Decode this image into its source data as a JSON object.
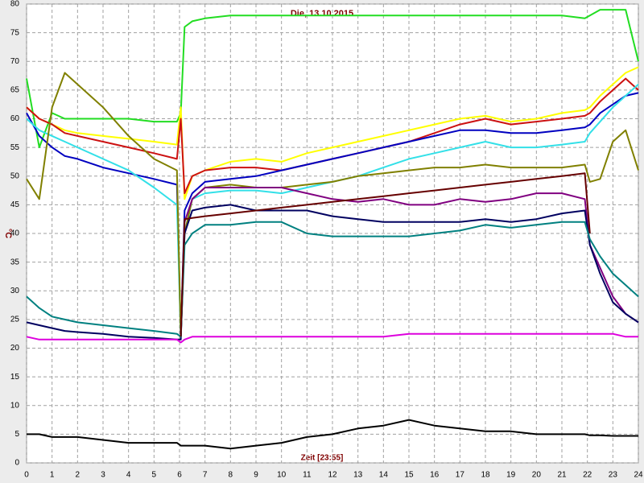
{
  "chart_data": {
    "type": "line",
    "title": "Die, 13.10.2015",
    "x_label": "Zeit [23:55]",
    "y_label": "°C",
    "x": [
      0,
      0.5,
      1,
      1.5,
      2,
      3,
      4,
      5,
      5.9,
      6.05,
      6.2,
      6.5,
      7,
      8,
      9,
      10,
      11,
      12,
      13,
      14,
      15,
      16,
      17,
      18,
      19,
      20,
      21,
      21.9,
      22.1,
      22.5,
      23,
      23.5,
      24
    ],
    "xlim": [
      0,
      24
    ],
    "xticks": [
      0,
      1,
      2,
      3,
      4,
      5,
      6,
      7,
      8,
      9,
      10,
      11,
      12,
      13,
      14,
      15,
      16,
      17,
      18,
      19,
      20,
      21,
      22,
      23,
      24
    ],
    "ylim": [
      0,
      80
    ],
    "yticks": [
      0,
      5,
      10,
      15,
      20,
      25,
      30,
      35,
      40,
      45,
      50,
      55,
      60,
      65,
      70,
      75,
      80
    ],
    "grid": true,
    "series": [
      {
        "color": "#22dd22",
        "values": [
          67,
          55,
          61,
          60,
          60,
          60,
          60,
          59.5,
          59.5,
          61,
          76,
          77,
          77.5,
          78,
          78,
          78,
          78,
          78,
          78,
          78,
          78,
          78,
          78,
          78,
          78,
          78,
          78,
          77.5,
          78,
          79,
          79,
          79,
          70
        ]
      },
      {
        "color": "#ffff00",
        "values": [
          62,
          60,
          59,
          58,
          57.5,
          57,
          56.5,
          56,
          55.5,
          62,
          46,
          50,
          51,
          52.5,
          53,
          52.5,
          54,
          55,
          56,
          57,
          58,
          59,
          60,
          60.5,
          59.5,
          60,
          61,
          61.5,
          62,
          64,
          66,
          68,
          69
        ]
      },
      {
        "color": "#cc1111",
        "values": [
          62,
          60,
          59,
          57.5,
          57,
          56,
          55,
          54,
          53,
          60,
          47,
          50,
          51,
          51.5,
          51.5,
          51,
          52,
          53,
          54,
          55,
          56,
          57.5,
          59,
          60,
          59,
          59.5,
          60,
          60.5,
          61,
          63,
          65,
          67,
          65
        ]
      },
      {
        "color": "#0000c0",
        "values": [
          61,
          57,
          55,
          53.5,
          53,
          51.5,
          50.5,
          49.5,
          48.5,
          22,
          44,
          47,
          49,
          49.5,
          50,
          51,
          52,
          53,
          54,
          55,
          56,
          57,
          58,
          58,
          57.5,
          57.5,
          58,
          58.5,
          59,
          61,
          62.5,
          64,
          64.5
        ]
      },
      {
        "color": "#33e0e8",
        "values": [
          60,
          58,
          57,
          56,
          55,
          53,
          51,
          48,
          45,
          22,
          40,
          46,
          47,
          47.5,
          47.5,
          47,
          48,
          49,
          50,
          51.5,
          53,
          54,
          55,
          56,
          55,
          55,
          55.5,
          56,
          57.5,
          59.5,
          62,
          64,
          66
        ]
      },
      {
        "color": "#808000",
        "values": [
          49.5,
          46,
          62,
          68,
          66,
          62,
          57,
          53,
          51,
          22,
          40,
          46,
          48,
          48.5,
          48,
          48,
          48.5,
          49,
          50,
          50.5,
          51,
          51.5,
          51.5,
          52,
          51.5,
          51.5,
          51.5,
          52,
          49,
          49.5,
          56,
          58,
          51
        ]
      },
      {
        "color": "#800080",
        "values": [
          null,
          null,
          null,
          null,
          null,
          null,
          null,
          null,
          null,
          22,
          42,
          46,
          48,
          48,
          48,
          48,
          47,
          46,
          45.5,
          46,
          45,
          45,
          46,
          45.5,
          46,
          47,
          47,
          46,
          38,
          34,
          29,
          26,
          24.5
        ]
      },
      {
        "color": "#000060",
        "values": [
          24.5,
          24,
          23.5,
          23,
          22.8,
          22.5,
          22,
          21.8,
          21.5,
          21.5,
          40,
          44,
          44.5,
          45,
          44,
          44,
          44,
          43,
          42.5,
          42,
          42,
          42,
          42,
          42.5,
          42,
          42.5,
          43.5,
          44,
          38,
          33,
          28,
          26,
          24.5
        ]
      },
      {
        "color": "#008080",
        "values": [
          29,
          27,
          25.5,
          25,
          24.5,
          24,
          23.5,
          23,
          22.5,
          22,
          38,
          40,
          41.5,
          41.5,
          42,
          42,
          40,
          39.5,
          39.5,
          39.5,
          39.5,
          40,
          40.5,
          41.5,
          41,
          41.5,
          42,
          42,
          39,
          36,
          33,
          31,
          29
        ]
      },
      {
        "color": "#660000",
        "values": [
          null,
          null,
          null,
          null,
          null,
          null,
          null,
          null,
          null,
          22,
          42.5,
          42.7,
          43,
          43.5,
          44,
          44.5,
          45,
          45.5,
          46,
          46.5,
          47,
          47.5,
          48,
          48.5,
          49,
          49.5,
          50,
          50.5,
          40,
          null,
          null,
          null,
          null
        ]
      },
      {
        "color": "#dd00dd",
        "values": [
          22,
          21.5,
          21.5,
          21.5,
          21.5,
          21.5,
          21.5,
          21.5,
          21.5,
          21,
          21.5,
          22,
          22,
          22,
          22,
          22,
          22,
          22,
          22,
          22,
          22.5,
          22.5,
          22.5,
          22.5,
          22.5,
          22.5,
          22.5,
          22.5,
          22.5,
          22.5,
          22.5,
          22,
          22
        ]
      },
      {
        "color": "#000000",
        "values": [
          5,
          5,
          4.5,
          4.5,
          4.5,
          4,
          3.5,
          3.5,
          3.5,
          3,
          3,
          3,
          3,
          2.5,
          3,
          3.5,
          4.5,
          5,
          6,
          6.5,
          7.5,
          6.5,
          6,
          5.5,
          5.5,
          5,
          5,
          5,
          4.8,
          4.8,
          4.7,
          4.7,
          4.7
        ]
      }
    ]
  }
}
